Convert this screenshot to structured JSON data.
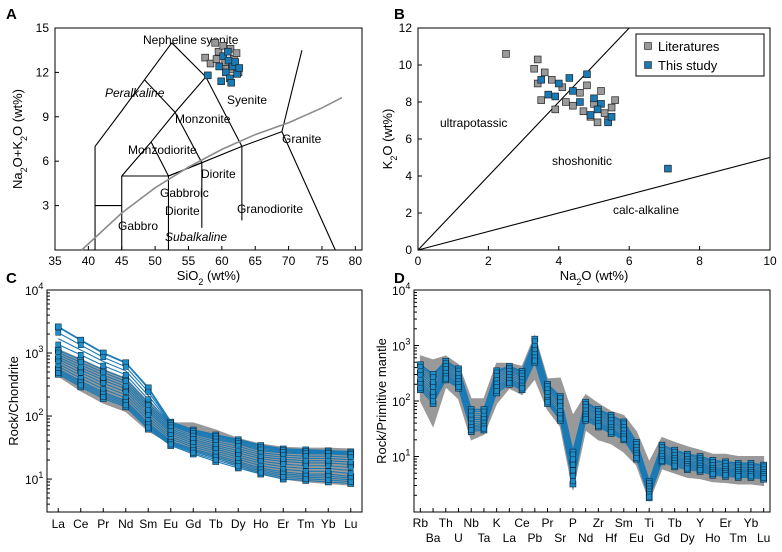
{
  "chart_data": [
    {
      "panel": "A",
      "type": "scatter",
      "title": "",
      "xlabel": "SiO2 (wt%)",
      "ylabel": "Na2O+K2O (wt%)",
      "xlim": [
        35,
        81
      ],
      "ylim": [
        0,
        15
      ],
      "x_ticks": [
        "35",
        "40",
        "45",
        "50",
        "55",
        "60",
        "65",
        "70",
        "75",
        "80"
      ],
      "y_ticks": [
        "3",
        "6",
        "9",
        "12",
        "15"
      ],
      "field_labels": [
        "Nepheline syenite",
        "Peralkaline",
        "Syenite",
        "Monzonite",
        "Monzodiorite",
        "Granite",
        "Diorite",
        "Gabbroic",
        "Diorite",
        "Granodiorite",
        "Gabbro",
        "Subalkaline"
      ],
      "alkaline_boundary": [
        [
          39,
          0
        ],
        [
          45,
          2.5
        ],
        [
          50,
          4.2
        ],
        [
          55,
          5.6
        ],
        [
          60,
          6.8
        ],
        [
          65,
          7.8
        ],
        [
          70,
          8.6
        ],
        [
          75,
          9.6
        ],
        [
          78,
          10.3
        ]
      ],
      "series": [
        {
          "name": "Literatures",
          "color": "#9a9a9a",
          "points": [
            [
              57.5,
              13.0
            ],
            [
              58.3,
              12.6
            ],
            [
              59.0,
              14.0
            ],
            [
              59.5,
              13.4
            ],
            [
              60.2,
              13.8
            ],
            [
              60.8,
              12.4
            ],
            [
              61.3,
              13.6
            ],
            [
              61.8,
              12.9
            ],
            [
              62.2,
              13.3
            ],
            [
              60.5,
              12.7
            ],
            [
              61.5,
              12.2
            ],
            [
              59.2,
              12.9
            ],
            [
              62.5,
              12.0
            ]
          ]
        },
        {
          "name": "This study",
          "color": "#1a7ab5",
          "points": [
            [
              57.9,
              11.8
            ],
            [
              59.6,
              12.4
            ],
            [
              60.2,
              13.1
            ],
            [
              60.6,
              12.0
            ],
            [
              61.0,
              12.8
            ],
            [
              61.2,
              11.6
            ],
            [
              61.6,
              12.4
            ],
            [
              62.0,
              12.7
            ],
            [
              62.3,
              11.9
            ],
            [
              60.9,
              13.4
            ],
            [
              59.9,
              11.4
            ],
            [
              62.6,
              12.3
            ],
            [
              61.4,
              11.3
            ]
          ]
        }
      ]
    },
    {
      "panel": "B",
      "type": "scatter",
      "title": "",
      "xlabel": "Na2O (wt%)",
      "ylabel": "K2O (wt%)",
      "xlim": [
        0,
        10
      ],
      "ylim": [
        0,
        12
      ],
      "x_ticks": [
        "0",
        "2",
        "4",
        "6",
        "8",
        "10"
      ],
      "y_ticks": [
        "0",
        "2",
        "4",
        "6",
        "8",
        "10",
        "12"
      ],
      "field_labels": [
        "ultrapotassic",
        "shoshonitic",
        "calc-alkaline"
      ],
      "lines": [
        [
          [
            0,
            0
          ],
          [
            6.0,
            12.0
          ]
        ],
        [
          [
            0,
            0
          ],
          [
            10.0,
            5.0
          ]
        ]
      ],
      "legend": [
        "Literatures",
        "This study"
      ],
      "series": [
        {
          "name": "Literatures",
          "color": "#9a9a9a",
          "points": [
            [
              2.5,
              10.6
            ],
            [
              3.3,
              9.8
            ],
            [
              3.4,
              10.3
            ],
            [
              3.6,
              9.6
            ],
            [
              3.8,
              9.2
            ],
            [
              3.5,
              8.1
            ],
            [
              4.2,
              8.0
            ],
            [
              4.4,
              7.8
            ],
            [
              4.6,
              8.5
            ],
            [
              4.8,
              8.9
            ],
            [
              5.0,
              7.9
            ],
            [
              5.2,
              8.6
            ],
            [
              5.5,
              7.7
            ],
            [
              4.9,
              7.2
            ],
            [
              5.3,
              7.4
            ],
            [
              5.1,
              6.9
            ],
            [
              5.4,
              7.0
            ],
            [
              5.6,
              8.1
            ],
            [
              3.9,
              7.6
            ],
            [
              4.7,
              7.5
            ],
            [
              3.4,
              9.0
            ],
            [
              4.1,
              8.8
            ]
          ]
        },
        {
          "name": "This study",
          "color": "#1a7ab5",
          "points": [
            [
              3.5,
              9.2
            ],
            [
              3.7,
              8.4
            ],
            [
              4.0,
              9.0
            ],
            [
              4.3,
              9.3
            ],
            [
              4.6,
              8.0
            ],
            [
              4.8,
              9.5
            ],
            [
              5.0,
              8.2
            ],
            [
              5.2,
              7.9
            ],
            [
              5.4,
              6.9
            ],
            [
              4.4,
              8.6
            ],
            [
              3.9,
              8.3
            ],
            [
              4.9,
              7.3
            ],
            [
              5.1,
              7.6
            ],
            [
              5.5,
              7.2
            ],
            [
              7.1,
              4.4
            ]
          ]
        }
      ]
    },
    {
      "panel": "C",
      "type": "line",
      "title": "",
      "xlabel": "",
      "ylabel": "Rock/Chondrite",
      "y_scale": "log",
      "ylim": [
        3,
        10000
      ],
      "y_ticks": [
        "10^1",
        "10^2",
        "10^3",
        "10^4"
      ],
      "categories": [
        "La",
        "Ce",
        "Pr",
        "Nd",
        "Sm",
        "Eu",
        "Gd",
        "Tb",
        "Dy",
        "Ho",
        "Er",
        "Tm",
        "Yb",
        "Lu"
      ],
      "literature_envelope": {
        "color": "#999999",
        "upper": [
          1150,
          800,
          550,
          400,
          170,
          78,
          78,
          60,
          44,
          36,
          32,
          31,
          31,
          30
        ],
        "lower": [
          430,
          250,
          160,
          118,
          58,
          36,
          28,
          22,
          16,
          12,
          10,
          9,
          8.5,
          8
        ]
      },
      "series": [
        {
          "name": "This study high",
          "color": "#1a7ab5",
          "values": [
            2600,
            1600,
            1000,
            700,
            280,
            80,
            60,
            50,
            42,
            34,
            30,
            29,
            28,
            27
          ]
        },
        {
          "name": "This study upper",
          "color": "#1a7ab5",
          "values": [
            1100,
            780,
            540,
            390,
            160,
            70,
            52,
            42,
            36,
            28,
            26,
            25,
            25,
            24
          ]
        },
        {
          "name": "This study middle",
          "color": "#1a7ab5",
          "values": [
            800,
            540,
            370,
            270,
            115,
            54,
            40,
            32,
            26,
            21,
            19,
            18,
            18,
            17
          ]
        },
        {
          "name": "This study lower",
          "color": "#1a7ab5",
          "values": [
            560,
            360,
            240,
            175,
            78,
            40,
            30,
            24,
            19,
            15,
            13,
            12,
            12,
            11
          ]
        },
        {
          "name": "This study low",
          "color": "#1a7ab5",
          "values": [
            460,
            290,
            190,
            140,
            62,
            34,
            25,
            19,
            15,
            12,
            10,
            9.5,
            9,
            8.5
          ]
        }
      ]
    },
    {
      "panel": "D",
      "type": "line",
      "title": "",
      "xlabel": "",
      "ylabel": "Rock/Primitive mantle",
      "y_scale": "log",
      "ylim": [
        1,
        10000
      ],
      "y_ticks": [
        "10^1",
        "10^2",
        "10^3",
        "10^4"
      ],
      "categories": [
        "Rb",
        "Ba",
        "Th",
        "U",
        "Nb",
        "Ta",
        "K",
        "La",
        "Ce",
        "Pb",
        "Pr",
        "Sr",
        "P",
        "Nd",
        "Zr",
        "Hf",
        "Sm",
        "Eu",
        "Ti",
        "Gd",
        "Tb",
        "Dy",
        "Y",
        "Ho",
        "Er",
        "Tm",
        "Yb",
        "Lu"
      ],
      "literature_envelope": {
        "color": "#999999",
        "upper": [
          650,
          550,
          650,
          450,
          110,
          110,
          480,
          480,
          420,
          1500,
          250,
          260,
          55,
          130,
          90,
          65,
          55,
          28,
          8,
          22,
          18,
          15,
          13,
          11,
          11,
          10,
          10,
          10
        ],
        "lower": [
          100,
          35,
          180,
          110,
          20,
          25,
          90,
          170,
          130,
          250,
          70,
          35,
          2.5,
          30,
          20,
          17,
          12,
          7,
          1.6,
          6,
          5,
          4.2,
          4,
          3.5,
          3.4,
          3.2,
          3.2,
          3
        ]
      },
      "series": [
        {
          "name": "This study a",
          "color": "#1a7ab5",
          "values": [
            450,
            300,
            520,
            380,
            70,
            70,
            350,
            420,
            340,
            1300,
            200,
            120,
            12,
            95,
            70,
            55,
            42,
            18,
            3.5,
            16,
            13,
            11,
            10,
            8.5,
            8,
            7.5,
            7.5,
            7
          ]
        },
        {
          "name": "This study b",
          "color": "#1a7ab5",
          "values": [
            320,
            200,
            400,
            280,
            50,
            50,
            260,
            330,
            270,
            900,
            150,
            90,
            8,
            72,
            55,
            42,
            32,
            14,
            2.8,
            12,
            10,
            8.5,
            8,
            6.5,
            6.3,
            6,
            6,
            5.5
          ]
        },
        {
          "name": "This study c",
          "color": "#1a7ab5",
          "values": [
            220,
            130,
            300,
            210,
            36,
            38,
            190,
            250,
            200,
            650,
            110,
            60,
            5,
            55,
            42,
            32,
            24,
            11,
            2.2,
            9.5,
            8,
            7,
            6.5,
            5.5,
            5.2,
            5,
            5,
            4.6
          ]
        },
        {
          "name": "This study d",
          "color": "#1a7ab5",
          "values": [
            160,
            90,
            240,
            170,
            28,
            30,
            140,
            200,
            160,
            500,
            90,
            45,
            3.2,
            45,
            34,
            26,
            20,
            9,
            1.8,
            8,
            6.5,
            5.8,
            5.4,
            4.6,
            4.4,
            4.2,
            4.2,
            3.9
          ]
        }
      ]
    }
  ]
}
